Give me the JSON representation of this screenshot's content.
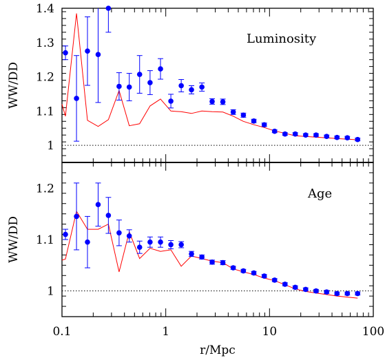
{
  "chart_data": [
    {
      "type": "scatter",
      "panel": "top",
      "annotation": "Luminosity",
      "xlabel": "r/Mpc",
      "ylabel": "WW/DD",
      "xscale": "log",
      "xlim": [
        0.1,
        100
      ],
      "ylim": [
        0.95,
        1.4
      ],
      "x_tick_labels": [
        "0.1",
        "1",
        "10",
        "100"
      ],
      "y_ticks": [
        1,
        1.1,
        1.2,
        1.3,
        1.4
      ],
      "y_tick_labels": [
        "1",
        "1.1",
        "1.2",
        "1.3",
        "1.4"
      ],
      "reference_line": 1,
      "grid": false,
      "series": [
        {
          "kind": "points_with_errorbars",
          "color": "#0000ff",
          "x": [
            0.108,
            0.138,
            0.176,
            0.223,
            0.28,
            0.355,
            0.445,
            0.56,
            0.706,
            0.89,
            1.12,
            1.41,
            1.77,
            2.23,
            2.8,
            3.55,
            4.47,
            5.6,
            7.06,
            8.9,
            11.2,
            14.1,
            17.7,
            22.3,
            28.1,
            35.5,
            44.7,
            56.2,
            70.6
          ],
          "y": [
            1.27,
            1.137,
            1.275,
            1.265,
            1.4,
            1.172,
            1.17,
            1.207,
            1.183,
            1.223,
            1.129,
            1.174,
            1.162,
            1.17,
            1.128,
            1.127,
            1.097,
            1.088,
            1.071,
            1.06,
            1.041,
            1.033,
            1.033,
            1.03,
            1.03,
            1.026,
            1.023,
            1.022,
            1.017
          ],
          "err": [
            0.02,
            0.125,
            0.1,
            0.14,
            0.07,
            0.04,
            0.04,
            0.055,
            0.035,
            0.03,
            0.02,
            0.018,
            0.012,
            0.012,
            0.008,
            0.008,
            0.007,
            0.006,
            0.005,
            0.005,
            0.004,
            0.004,
            0.004,
            0.004,
            0.004,
            0.004,
            0.004,
            0.004,
            0.004
          ]
        },
        {
          "kind": "line",
          "color": "#ff0000",
          "x": [
            0.1,
            0.108,
            0.138,
            0.176,
            0.223,
            0.28,
            0.355,
            0.445,
            0.56,
            0.706,
            0.89,
            1.12,
            1.41,
            1.77,
            2.23,
            2.8,
            3.55,
            4.47,
            5.6,
            7.06,
            8.9,
            11.2,
            14.1,
            17.7,
            22.3,
            28.1,
            35.5,
            44.7,
            56.2,
            70.6
          ],
          "y": [
            1.12,
            1.085,
            1.385,
            1.073,
            1.055,
            1.075,
            1.16,
            1.057,
            1.063,
            1.115,
            1.135,
            1.1,
            1.098,
            1.093,
            1.1,
            1.098,
            1.097,
            1.085,
            1.07,
            1.06,
            1.052,
            1.042,
            1.035,
            1.028,
            1.026,
            1.024,
            1.022,
            1.02,
            1.018,
            1.016
          ]
        }
      ]
    },
    {
      "type": "scatter",
      "panel": "bottom",
      "annotation": "Age",
      "xlabel": "r/Mpc",
      "ylabel": "WW/DD",
      "xscale": "log",
      "xlim": [
        0.1,
        100
      ],
      "ylim": [
        0.95,
        1.25
      ],
      "x_tick_labels": [
        "0.1",
        "1",
        "10",
        "100"
      ],
      "y_ticks": [
        1,
        1.1,
        1.2
      ],
      "y_tick_labels": [
        "1",
        "1.1",
        "1.2"
      ],
      "reference_line": 1,
      "grid": false,
      "series": [
        {
          "kind": "points_with_errorbars",
          "color": "#0000ff",
          "x": [
            0.108,
            0.138,
            0.176,
            0.223,
            0.28,
            0.355,
            0.445,
            0.56,
            0.706,
            0.89,
            1.12,
            1.41,
            1.77,
            2.23,
            2.8,
            3.55,
            4.47,
            5.6,
            7.06,
            8.9,
            11.2,
            14.1,
            17.7,
            22.3,
            28.1,
            35.5,
            44.7,
            56.2,
            70.6
          ],
          "y": [
            1.11,
            1.145,
            1.095,
            1.168,
            1.147,
            1.113,
            1.107,
            1.085,
            1.095,
            1.095,
            1.09,
            1.09,
            1.072,
            1.066,
            1.056,
            1.055,
            1.045,
            1.039,
            1.035,
            1.029,
            1.021,
            1.013,
            1.007,
            1.003,
            1.0,
            0.998,
            0.995,
            0.995,
            0.995
          ],
          "err": [
            0.01,
            0.065,
            0.05,
            0.042,
            0.035,
            0.025,
            0.012,
            0.012,
            0.01,
            0.01,
            0.008,
            0.006,
            0.005,
            0.004,
            0.004,
            0.004,
            0.003,
            0.003,
            0.003,
            0.003,
            0.003,
            0.003,
            0.003,
            0.003,
            0.003,
            0.003,
            0.003,
            0.003,
            0.003
          ]
        },
        {
          "kind": "line",
          "color": "#ff0000",
          "x": [
            0.1,
            0.108,
            0.138,
            0.176,
            0.223,
            0.28,
            0.355,
            0.445,
            0.56,
            0.706,
            0.89,
            1.12,
            1.41,
            1.77,
            2.23,
            2.8,
            3.55,
            4.47,
            5.6,
            7.06,
            8.9,
            11.2,
            14.1,
            17.7,
            22.3,
            28.1,
            35.5,
            44.7,
            56.2,
            70.6
          ],
          "y": [
            1.06,
            1.062,
            1.155,
            1.12,
            1.12,
            1.13,
            1.037,
            1.115,
            1.063,
            1.083,
            1.077,
            1.08,
            1.048,
            1.068,
            1.063,
            1.058,
            1.055,
            1.043,
            1.037,
            1.032,
            1.025,
            1.02,
            1.012,
            1.004,
            0.999,
            0.996,
            0.993,
            0.99,
            0.988,
            0.986
          ]
        }
      ]
    }
  ]
}
